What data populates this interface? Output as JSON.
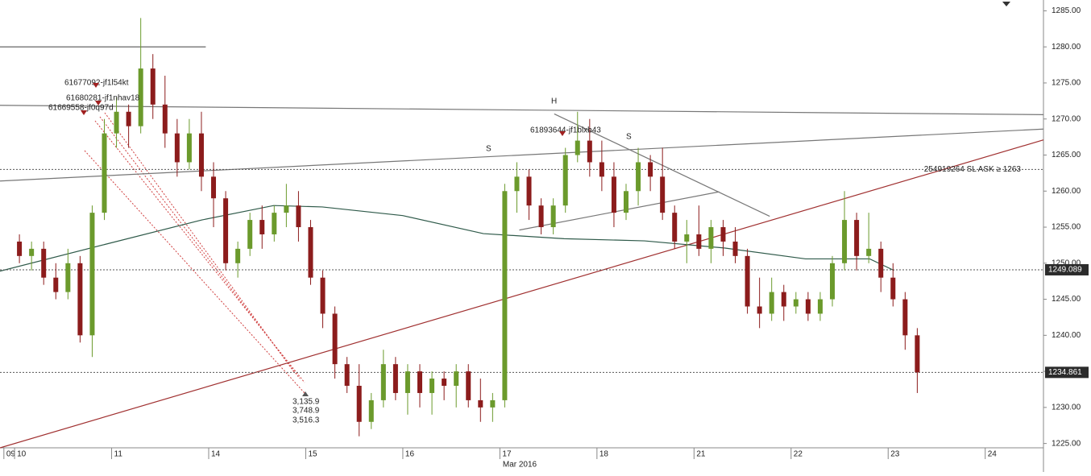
{
  "chart_data": {
    "type": "candlestick",
    "up_color": "#6b9a2c",
    "down_color": "#8c1c1c",
    "xlim": [
      -0.15,
      10.6
    ],
    "ylim": [
      1224.4,
      1286.5
    ],
    "yticks": [
      {
        "value": 1225,
        "label": "1225.00"
      },
      {
        "value": 1230,
        "label": "1230.00"
      },
      {
        "value": 1235,
        "label": "1235.00"
      },
      {
        "value": 1240,
        "label": "1240.00"
      },
      {
        "value": 1245,
        "label": "1245.00"
      },
      {
        "value": 1250,
        "label": "1250.00"
      },
      {
        "value": 1255,
        "label": "1255.00"
      },
      {
        "value": 1260,
        "label": "1260.00"
      },
      {
        "value": 1265,
        "label": "1265.00"
      },
      {
        "value": 1270,
        "label": "1270.00"
      },
      {
        "value": 1275,
        "label": "1275.00"
      },
      {
        "value": 1280,
        "label": "1280.00"
      },
      {
        "value": 1285,
        "label": "1285.00"
      }
    ],
    "xticks": [
      {
        "value": -0.11,
        "label": "09"
      },
      {
        "value": 0,
        "label": "10"
      },
      {
        "value": 1,
        "label": "11"
      },
      {
        "value": 2,
        "label": "14"
      },
      {
        "value": 3,
        "label": "15"
      },
      {
        "value": 4,
        "label": "16"
      },
      {
        "value": 5,
        "label": "17"
      },
      {
        "value": 6,
        "label": "18"
      },
      {
        "value": 7,
        "label": "21"
      },
      {
        "value": 8,
        "label": "22"
      },
      {
        "value": 9,
        "label": "23"
      },
      {
        "value": 10,
        "label": "24"
      }
    ],
    "x_axis_label": "Mar 2016",
    "x": [
      0.05,
      0.175,
      0.3,
      0.425,
      0.55,
      0.675,
      0.8,
      0.925,
      1.05,
      1.175,
      1.3,
      1.425,
      1.55,
      1.675,
      1.8,
      1.925,
      2.05,
      2.175,
      2.3,
      2.425,
      2.55,
      2.675,
      2.8,
      2.925,
      3.05,
      3.175,
      3.3,
      3.425,
      3.55,
      3.675,
      3.8,
      3.925,
      4.05,
      4.175,
      4.3,
      4.425,
      4.55,
      4.675,
      4.8,
      4.925,
      5.05,
      5.175,
      5.3,
      5.425,
      5.55,
      5.675,
      5.8,
      5.925,
      6.05,
      6.175,
      6.3,
      6.425,
      6.55,
      6.675,
      6.8,
      6.925,
      7.05,
      7.175,
      7.3,
      7.425,
      7.55,
      7.675,
      7.8,
      7.925,
      8.05,
      8.175,
      8.3,
      8.425,
      8.55,
      8.675,
      8.8,
      8.925,
      9.05,
      9.175,
      9.3
    ],
    "candles": [
      [
        1253,
        1254,
        1250,
        1251
      ],
      [
        1251,
        1253,
        1249,
        1252
      ],
      [
        1252,
        1253,
        1247,
        1248
      ],
      [
        1248,
        1250,
        1245,
        1246
      ],
      [
        1246,
        1252,
        1245,
        1250
      ],
      [
        1250,
        1251,
        1239,
        1240
      ],
      [
        1240,
        1258,
        1237,
        1257
      ],
      [
        1257,
        1270,
        1256,
        1268
      ],
      [
        1268,
        1273,
        1266,
        1271
      ],
      [
        1271,
        1272,
        1266,
        1269
      ],
      [
        1269,
        1284,
        1268,
        1277
      ],
      [
        1277,
        1279,
        1270,
        1272
      ],
      [
        1272,
        1276,
        1266,
        1268
      ],
      [
        1268,
        1270,
        1262,
        1264
      ],
      [
        1264,
        1270,
        1263,
        1268
      ],
      [
        1268,
        1271,
        1260,
        1262
      ],
      [
        1262,
        1264,
        1255,
        1259
      ],
      [
        1259,
        1260,
        1249,
        1250
      ],
      [
        1250,
        1253,
        1248,
        1252
      ],
      [
        1252,
        1257,
        1251,
        1256
      ],
      [
        1256,
        1258,
        1252,
        1254
      ],
      [
        1254,
        1258,
        1253,
        1257
      ],
      [
        1257,
        1261,
        1255,
        1258
      ],
      [
        1258,
        1260,
        1253,
        1255
      ],
      [
        1255,
        1256,
        1247,
        1248
      ],
      [
        1248,
        1249,
        1241,
        1243
      ],
      [
        1243,
        1244,
        1234,
        1236
      ],
      [
        1236,
        1237,
        1232,
        1233
      ],
      [
        1233,
        1236,
        1226,
        1228
      ],
      [
        1228,
        1232,
        1227,
        1231
      ],
      [
        1231,
        1238,
        1230,
        1236
      ],
      [
        1236,
        1237,
        1231,
        1232
      ],
      [
        1232,
        1236,
        1229,
        1235
      ],
      [
        1235,
        1236,
        1230,
        1232
      ],
      [
        1232,
        1235,
        1229,
        1234
      ],
      [
        1234,
        1235,
        1231,
        1233
      ],
      [
        1233,
        1236,
        1230,
        1235
      ],
      [
        1235,
        1236,
        1230,
        1231
      ],
      [
        1231,
        1234,
        1228,
        1230
      ],
      [
        1230,
        1232,
        1228,
        1231
      ],
      [
        1231,
        1261,
        1230,
        1260
      ],
      [
        1260,
        1264,
        1257,
        1262
      ],
      [
        1262,
        1263,
        1256,
        1258
      ],
      [
        1258,
        1259,
        1254,
        1255
      ],
      [
        1255,
        1259,
        1254,
        1258
      ],
      [
        1258,
        1266,
        1257,
        1265
      ],
      [
        1265,
        1271,
        1264,
        1267
      ],
      [
        1267,
        1270,
        1262,
        1264
      ],
      [
        1264,
        1267,
        1260,
        1262
      ],
      [
        1262,
        1264,
        1255,
        1257
      ],
      [
        1257,
        1261,
        1256,
        1260
      ],
      [
        1260,
        1266,
        1258,
        1264
      ],
      [
        1264,
        1265,
        1260,
        1262
      ],
      [
        1262,
        1266,
        1256,
        1257
      ],
      [
        1257,
        1258,
        1252,
        1253
      ],
      [
        1253,
        1256,
        1250,
        1254
      ],
      [
        1254,
        1258,
        1251,
        1252
      ],
      [
        1252,
        1256,
        1250,
        1255
      ],
      [
        1255,
        1256,
        1251,
        1253
      ],
      [
        1253,
        1255,
        1250,
        1251
      ],
      [
        1251,
        1252,
        1243,
        1244
      ],
      [
        1244,
        1248,
        1241,
        1243
      ],
      [
        1243,
        1248,
        1242,
        1246
      ],
      [
        1246,
        1247,
        1242,
        1244
      ],
      [
        1244,
        1246,
        1243,
        1245
      ],
      [
        1245,
        1246,
        1242,
        1243
      ],
      [
        1243,
        1246,
        1242,
        1245
      ],
      [
        1245,
        1251,
        1244,
        1250
      ],
      [
        1250,
        1260,
        1249,
        1256
      ],
      [
        1256,
        1257,
        1249,
        1251
      ],
      [
        1251,
        1257,
        1250,
        1252
      ],
      [
        1252,
        1253,
        1246,
        1248
      ],
      [
        1248,
        1250,
        1244,
        1245
      ],
      [
        1245,
        1246,
        1238,
        1240
      ],
      [
        1240,
        1241,
        1232,
        1234.861
      ]
    ],
    "moving_average": {
      "color": "#2f5a4a",
      "x": [
        -0.15,
        0.93,
        1.93,
        2.67,
        3.17,
        4.0,
        4.83,
        5.66,
        6.49,
        7.32,
        8.15,
        8.81,
        9.06
      ],
      "values": [
        1248.9,
        1252.6,
        1256,
        1258,
        1257.8,
        1256.6,
        1254.1,
        1253.4,
        1253.1,
        1252.1,
        1250.6,
        1250.6,
        1249
      ]
    },
    "trendlines": [
      {
        "color": "#a03030",
        "x": [
          -0.15,
          10.6
        ],
        "values": [
          1224.4,
          1267.1
        ]
      },
      {
        "color": "#777777",
        "x": [
          -0.15,
          10.6
        ],
        "values": [
          1271.9,
          1270.6
        ]
      },
      {
        "color": "#777777",
        "x": [
          -0.15,
          10.6
        ],
        "values": [
          1261.4,
          1268.6
        ]
      },
      {
        "color": "#555555",
        "x": [
          -0.15,
          1.97
        ],
        "values": [
          1280,
          1280
        ]
      },
      {
        "color": "#777777",
        "x": [
          5.56,
          7.78
        ],
        "values": [
          1270.7,
          1256.5
        ]
      },
      {
        "color": "#777777",
        "x": [
          5.2,
          7.26
        ],
        "values": [
          1254.6,
          1259.9
        ]
      }
    ],
    "levels": [
      {
        "value": 1263,
        "label": "254919264 SL ASK ≥ 1263"
      },
      {
        "value": 1249.089,
        "label": "1249.089"
      },
      {
        "value": 1234.861,
        "label": "1234.861"
      }
    ],
    "annotations": [
      "61677092-jf1l54kt",
      "61680281-jf1nhav18",
      "61669558-jf0q97d",
      "61893644-jf1blxb43",
      "H",
      "S",
      "S",
      "3,135.9",
      "3,748.9",
      "3,516.3"
    ]
  }
}
